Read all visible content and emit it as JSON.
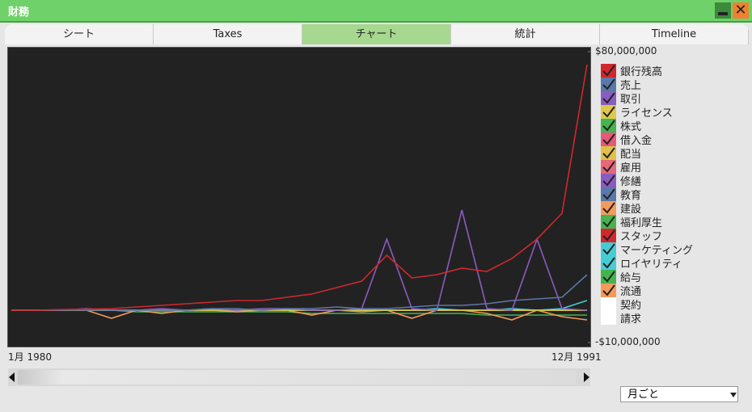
{
  "window": {
    "title": "財務",
    "tabs": [
      "シート",
      "Taxes",
      "チャート",
      "統計",
      "Timeline"
    ],
    "active_tab": 2,
    "dropdown": "月ごと"
  },
  "chart_data": {
    "type": "line",
    "categories": [
      "1月 1980",
      null,
      null,
      null,
      null,
      null,
      null,
      null,
      null,
      null,
      null,
      null,
      null,
      null,
      null,
      null,
      null,
      null,
      null,
      null,
      null,
      null,
      null,
      "12月 1991"
    ],
    "ylim": [
      -10000000,
      80000000
    ],
    "yticks": [
      {
        "value": -10000000,
        "label": "-$10,000,000"
      },
      {
        "value": 80000000,
        "label": "$80,000,000"
      }
    ],
    "series": [
      {
        "name": "銀行残高",
        "color": "#d0282c",
        "checked": true,
        "values": [
          0,
          0,
          200000,
          300000,
          500000,
          1000000,
          1500000,
          2000000,
          2500000,
          3000000,
          3000000,
          4000000,
          5000000,
          7000000,
          9000000,
          17000000,
          10000000,
          11000000,
          13000000,
          12000000,
          16000000,
          22000000,
          30000000,
          76000000
        ]
      },
      {
        "name": "売上",
        "color": "#5a78a8",
        "checked": true,
        "values": [
          0,
          0,
          0,
          0,
          0,
          0,
          0,
          0,
          500000,
          500000,
          0,
          500000,
          500000,
          1000000,
          500000,
          500000,
          1000000,
          1500000,
          1500000,
          2000000,
          3000000,
          3500000,
          4000000,
          11000000
        ]
      },
      {
        "name": "取引",
        "color": "#8a5cc0",
        "checked": true,
        "values": [
          0,
          0,
          0,
          500000,
          0,
          0,
          500000,
          0,
          500000,
          0,
          500000,
          500000,
          0,
          0,
          500000,
          22000000,
          500000,
          0,
          31000000,
          500000,
          0,
          22000000,
          500000,
          0
        ]
      },
      {
        "name": "ライセンス",
        "color": "#e0c84a",
        "checked": true,
        "values": [
          0,
          0,
          0,
          0,
          0,
          0,
          0,
          0,
          0,
          0,
          0,
          0,
          0,
          0,
          0,
          0,
          0,
          0,
          0,
          0,
          0,
          0,
          0,
          0
        ]
      },
      {
        "name": "株式",
        "color": "#44b44e",
        "checked": true,
        "values": [
          0,
          0,
          0,
          0,
          0,
          0,
          0,
          0,
          0,
          0,
          0,
          0,
          0,
          0,
          0,
          0,
          0,
          0,
          0,
          0,
          0,
          0,
          0,
          0
        ]
      },
      {
        "name": "借入金",
        "color": "#e45a78",
        "checked": true,
        "values": [
          0,
          0,
          0,
          0,
          0,
          0,
          0,
          0,
          0,
          0,
          0,
          0,
          0,
          0,
          0,
          0,
          0,
          0,
          0,
          0,
          0,
          0,
          0,
          0
        ]
      },
      {
        "name": "配当",
        "color": "#e0c04a",
        "checked": true,
        "values": [
          0,
          0,
          0,
          0,
          0,
          0,
          0,
          0,
          0,
          0,
          0,
          0,
          0,
          0,
          0,
          0,
          0,
          0,
          0,
          0,
          0,
          0,
          0,
          0
        ]
      },
      {
        "name": "雇用",
        "color": "#e46878",
        "checked": true,
        "values": [
          0,
          0,
          0,
          0,
          0,
          0,
          0,
          0,
          0,
          0,
          0,
          0,
          0,
          0,
          0,
          0,
          0,
          0,
          0,
          0,
          0,
          0,
          0,
          0
        ]
      },
      {
        "name": "修繕",
        "color": "#8a5cc0",
        "checked": true,
        "values": [
          0,
          0,
          0,
          0,
          0,
          0,
          0,
          0,
          0,
          0,
          0,
          0,
          0,
          0,
          0,
          0,
          0,
          0,
          0,
          0,
          0,
          0,
          0,
          0
        ]
      },
      {
        "name": "教育",
        "color": "#5a78a8",
        "checked": true,
        "values": [
          0,
          0,
          0,
          0,
          0,
          0,
          0,
          0,
          0,
          0,
          0,
          0,
          0,
          0,
          0,
          0,
          0,
          0,
          0,
          0,
          0,
          0,
          0,
          0
        ]
      },
      {
        "name": "建設",
        "color": "#f49a5a",
        "checked": true,
        "values": [
          0,
          0,
          0,
          0,
          -2500000,
          0,
          -1000000,
          0,
          0,
          -500000,
          0,
          0,
          -1500000,
          0,
          -500000,
          0,
          -2500000,
          0,
          0,
          -1000000,
          -3000000,
          0,
          -2000000,
          -3000000
        ]
      },
      {
        "name": "福利厚生",
        "color": "#44b44e",
        "checked": true,
        "values": [
          0,
          0,
          0,
          0,
          0,
          0,
          0,
          0,
          0,
          0,
          0,
          0,
          0,
          0,
          0,
          0,
          0,
          0,
          0,
          0,
          0,
          0,
          0,
          0
        ]
      },
      {
        "name": "スタッフ",
        "color": "#d0282c",
        "checked": true,
        "values": [
          0,
          0,
          0,
          0,
          0,
          0,
          0,
          0,
          0,
          0,
          0,
          0,
          0,
          0,
          0,
          0,
          0,
          0,
          0,
          0,
          0,
          0,
          0,
          0
        ]
      },
      {
        "name": "マーケティング",
        "color": "#46ccd4",
        "checked": true,
        "values": [
          0,
          0,
          0,
          0,
          0,
          0,
          0,
          0,
          0,
          0,
          0,
          0,
          0,
          0,
          0,
          0,
          0,
          500000,
          0,
          0,
          500000,
          0,
          500000,
          3000000
        ]
      },
      {
        "name": "ロイヤリティ",
        "color": "#46ccd4",
        "checked": true,
        "values": [
          0,
          0,
          0,
          0,
          0,
          0,
          0,
          0,
          0,
          0,
          0,
          0,
          0,
          0,
          0,
          0,
          0,
          0,
          0,
          0,
          0,
          0,
          0,
          0
        ]
      },
      {
        "name": "給与",
        "color": "#44b44e",
        "checked": true,
        "values": [
          0,
          0,
          0,
          0,
          0,
          -500000,
          -500000,
          -500000,
          -500000,
          -500000,
          -500000,
          -500000,
          -1000000,
          -1000000,
          -1000000,
          -1000000,
          -1000000,
          -1000000,
          -1000000,
          -1500000,
          -1500000,
          -1500000,
          -1500000,
          -1500000
        ]
      },
      {
        "name": "流通",
        "color": "#f49a5a",
        "checked": true,
        "values": [
          0,
          0,
          0,
          0,
          0,
          0,
          0,
          0,
          0,
          0,
          0,
          0,
          0,
          0,
          0,
          0,
          0,
          0,
          0,
          0,
          0,
          0,
          0,
          0
        ]
      },
      {
        "name": "契約",
        "color": "#ffffff",
        "checked": false,
        "values": [
          0,
          0,
          0,
          0,
          0,
          0,
          0,
          0,
          0,
          0,
          0,
          0,
          0,
          0,
          0,
          0,
          0,
          0,
          0,
          0,
          0,
          0,
          0,
          0
        ]
      },
      {
        "name": "請求",
        "color": "#ffffff",
        "checked": false,
        "values": [
          0,
          0,
          0,
          0,
          0,
          0,
          0,
          0,
          0,
          0,
          0,
          0,
          0,
          0,
          0,
          0,
          0,
          0,
          0,
          0,
          0,
          0,
          0,
          0
        ]
      }
    ]
  }
}
